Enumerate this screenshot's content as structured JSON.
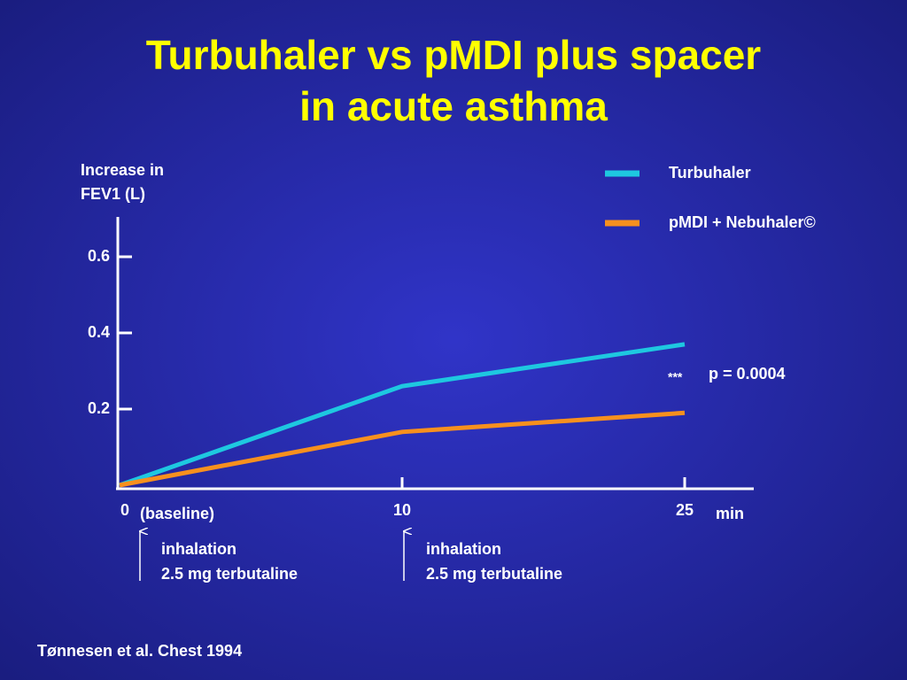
{
  "chart_data": {
    "type": "line",
    "title_lines": [
      "Turbuhaler vs pMDI plus spacer",
      "in acute asthma"
    ],
    "y_label_lines": [
      "Increase in",
      "FEV1 (L)"
    ],
    "x_label": "min",
    "categories": [
      "0",
      "10",
      "25"
    ],
    "series": [
      {
        "name": "Turbuhaler",
        "color": "#1ec8e0",
        "values": [
          0.0,
          0.26,
          0.37
        ]
      },
      {
        "name": "pMDI + Nebuhaler©",
        "color": "#f7901e",
        "values": [
          0.0,
          0.14,
          0.19
        ]
      }
    ],
    "ylim": [
      0,
      0.7
    ],
    "yticks": [
      0.2,
      0.4,
      0.6
    ],
    "annotations": [
      "(baseline)",
      "***",
      "p = 0.0004",
      "inhalation",
      "2.5 mg terbutaline",
      "inhalation",
      "2.5 mg terbutaline"
    ],
    "source": "Tønnesen et al. Chest 1994"
  }
}
